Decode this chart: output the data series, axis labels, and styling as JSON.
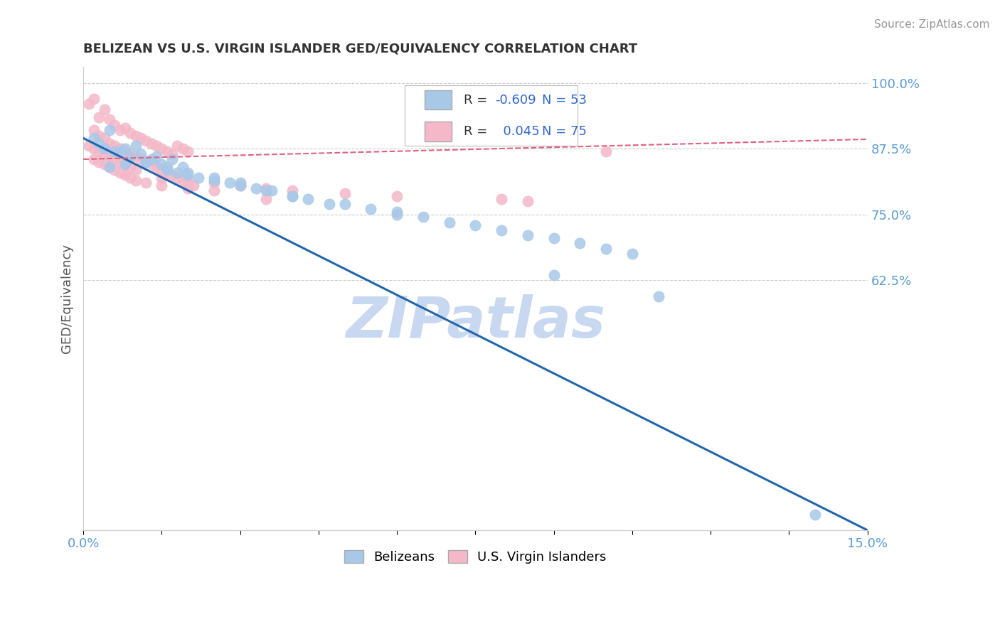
{
  "title": "BELIZEAN VS U.S. VIRGIN ISLANDER GED/EQUIVALENCY CORRELATION CHART",
  "source": "Source: ZipAtlas.com",
  "ylabel": "GED/Equivalency",
  "legend_labels": [
    "Belizeans",
    "U.S. Virgin Islanders"
  ],
  "blue_color": "#a8c8e8",
  "pink_color": "#f4b8c8",
  "blue_line_color": "#2166ac",
  "pink_line_color": "#e06080",
  "R_blue": -0.609,
  "N_blue": 53,
  "R_pink": 0.045,
  "N_pink": 75,
  "xlim": [
    0.0,
    0.15
  ],
  "ylim": [
    0.15,
    1.03
  ],
  "yticks": [
    0.625,
    0.75,
    0.875,
    1.0
  ],
  "ytick_labels": [
    "62.5%",
    "75.0%",
    "87.5%",
    "100.0%"
  ],
  "xticks": [
    0.0,
    0.015,
    0.03,
    0.045,
    0.06,
    0.075,
    0.09,
    0.105,
    0.12,
    0.135,
    0.15
  ],
  "xtick_labels": [
    "0.0%",
    "",
    "",
    "",
    "",
    "",
    "",
    "",
    "",
    "",
    "15.0%"
  ],
  "watermark": "ZIPatlas",
  "watermark_color": "#c8d8f0",
  "title_color": "#333333",
  "axis_color": "#5b9bd5",
  "grid_color": "#cccccc",
  "blue_line_y0": 0.895,
  "blue_line_y1": 0.15,
  "pink_line_y0": 0.855,
  "pink_line_y1": 0.893,
  "blue_scatter_x": [
    0.002,
    0.003,
    0.004,
    0.005,
    0.006,
    0.007,
    0.008,
    0.009,
    0.01,
    0.011,
    0.012,
    0.013,
    0.014,
    0.015,
    0.016,
    0.017,
    0.018,
    0.019,
    0.02,
    0.022,
    0.025,
    0.028,
    0.03,
    0.033,
    0.036,
    0.04,
    0.043,
    0.047,
    0.05,
    0.055,
    0.06,
    0.065,
    0.07,
    0.075,
    0.08,
    0.085,
    0.09,
    0.095,
    0.1,
    0.105,
    0.005,
    0.008,
    0.012,
    0.016,
    0.02,
    0.025,
    0.03,
    0.035,
    0.04,
    0.06,
    0.09,
    0.11,
    0.14
  ],
  "blue_scatter_y": [
    0.895,
    0.885,
    0.875,
    0.91,
    0.87,
    0.87,
    0.875,
    0.86,
    0.88,
    0.865,
    0.85,
    0.855,
    0.86,
    0.845,
    0.84,
    0.855,
    0.83,
    0.84,
    0.83,
    0.82,
    0.82,
    0.81,
    0.81,
    0.8,
    0.795,
    0.785,
    0.78,
    0.77,
    0.77,
    0.76,
    0.755,
    0.745,
    0.735,
    0.73,
    0.72,
    0.71,
    0.705,
    0.695,
    0.685,
    0.675,
    0.84,
    0.845,
    0.85,
    0.835,
    0.825,
    0.815,
    0.805,
    0.795,
    0.785,
    0.75,
    0.635,
    0.595,
    0.18
  ],
  "pink_scatter_x": [
    0.001,
    0.002,
    0.003,
    0.004,
    0.005,
    0.006,
    0.007,
    0.008,
    0.009,
    0.01,
    0.011,
    0.012,
    0.013,
    0.014,
    0.015,
    0.016,
    0.017,
    0.018,
    0.019,
    0.02,
    0.002,
    0.003,
    0.004,
    0.005,
    0.006,
    0.007,
    0.008,
    0.009,
    0.01,
    0.011,
    0.012,
    0.013,
    0.014,
    0.015,
    0.016,
    0.017,
    0.018,
    0.019,
    0.02,
    0.021,
    0.001,
    0.002,
    0.003,
    0.004,
    0.005,
    0.006,
    0.007,
    0.008,
    0.009,
    0.01,
    0.015,
    0.02,
    0.025,
    0.03,
    0.035,
    0.04,
    0.05,
    0.06,
    0.08,
    0.085,
    0.002,
    0.003,
    0.004,
    0.005,
    0.006,
    0.007,
    0.008,
    0.009,
    0.01,
    0.012,
    0.015,
    0.02,
    0.025,
    0.035,
    0.1
  ],
  "pink_scatter_y": [
    0.96,
    0.97,
    0.935,
    0.95,
    0.93,
    0.92,
    0.91,
    0.915,
    0.905,
    0.9,
    0.895,
    0.89,
    0.885,
    0.88,
    0.875,
    0.87,
    0.865,
    0.88,
    0.875,
    0.87,
    0.91,
    0.9,
    0.895,
    0.885,
    0.88,
    0.875,
    0.87,
    0.865,
    0.86,
    0.855,
    0.85,
    0.845,
    0.84,
    0.835,
    0.83,
    0.825,
    0.82,
    0.815,
    0.81,
    0.805,
    0.88,
    0.875,
    0.87,
    0.865,
    0.86,
    0.855,
    0.85,
    0.845,
    0.84,
    0.835,
    0.82,
    0.815,
    0.81,
    0.805,
    0.8,
    0.795,
    0.79,
    0.785,
    0.78,
    0.775,
    0.855,
    0.85,
    0.845,
    0.84,
    0.835,
    0.83,
    0.825,
    0.82,
    0.815,
    0.81,
    0.805,
    0.8,
    0.795,
    0.78,
    0.87
  ]
}
